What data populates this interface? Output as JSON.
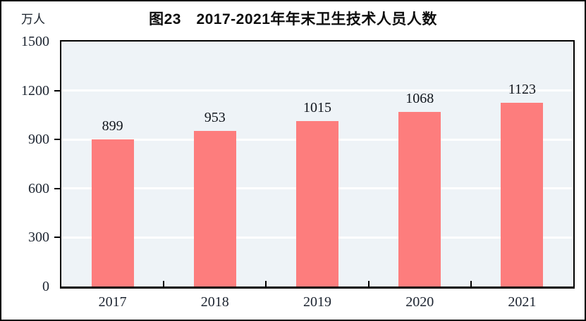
{
  "figure": {
    "title": "图23　2017-2021年年末卫生技术人员人数",
    "unit_label": "万人"
  },
  "colors": {
    "bar": "#fd7d7d",
    "plot_background": "#eef3f7",
    "gridline": "#ffffff",
    "axis_frame": "#000000",
    "text": "#1c2430"
  },
  "chart_data": {
    "type": "bar",
    "title": "图23　2017-2021年年末卫生技术人员人数",
    "categories": [
      "2017",
      "2018",
      "2019",
      "2020",
      "2021"
    ],
    "values": [
      899,
      953,
      1015,
      1068,
      1123
    ],
    "value_labels": [
      "899",
      "953",
      "1015",
      "1068",
      "1123"
    ],
    "xlabel": "",
    "ylabel": "万人",
    "ylim": [
      0,
      1500
    ],
    "yticks": [
      0,
      300,
      600,
      900,
      1200,
      1500
    ],
    "ytick_labels": [
      "0",
      "300",
      "600",
      "900",
      "1200",
      "1500"
    ],
    "gridline_values": [
      300,
      600,
      900,
      1200
    ],
    "grid": true,
    "legend_position": "none"
  }
}
